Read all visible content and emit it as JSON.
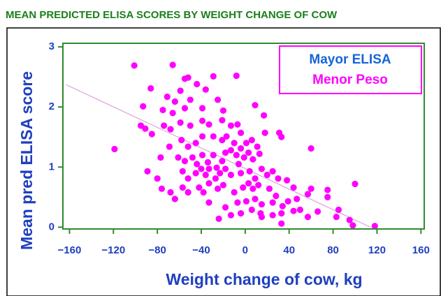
{
  "chart_data": {
    "type": "scatter",
    "title": "MEAN PREDICTED ELISA SCORES BY WEIGHT CHANGE OF COW",
    "xlabel": "Weight change of cow, kg",
    "ylabel": "Mean pred ELISA score",
    "annotations": [
      {
        "text": "Mayor ELISA",
        "color": "#1565d8"
      },
      {
        "text": "Menor Peso",
        "color": "#ff00ff"
      }
    ],
    "xlim": [
      -166,
      163
    ],
    "ylim": [
      -0.03,
      3.06
    ],
    "xticks": [
      {
        "value": -160,
        "label": "−160"
      },
      {
        "value": -120,
        "label": "−120"
      },
      {
        "value": -80,
        "label": "−80"
      },
      {
        "value": -40,
        "label": "−40"
      },
      0,
      40,
      80,
      120,
      160
    ],
    "yticks": [
      0,
      1,
      2,
      3
    ],
    "trendline": {
      "color": "#e0a0e0",
      "x": [
        -163,
        114
      ],
      "y": [
        2.37,
        0
      ]
    },
    "series": [
      {
        "color": "#ff00ff",
        "x": [
          -101,
          -66,
          -8,
          -29,
          -55,
          -52,
          -119,
          -86,
          -44,
          -36,
          -71,
          -59,
          -64,
          -50,
          -93,
          -75,
          -66,
          -55,
          -39,
          -25,
          -20,
          -95,
          -91,
          -85,
          -74,
          -68,
          -59,
          -50,
          -39,
          -33,
          -21,
          -13,
          -7,
          9,
          18,
          31,
          33,
          17,
          -69,
          -58,
          -52,
          -45,
          -39,
          -29,
          -21,
          -17,
          -10,
          -4,
          1,
          6,
          11,
          -77,
          -61,
          -55,
          -48,
          -44,
          -39,
          -34,
          -29,
          -26,
          -21,
          -18,
          -13,
          -8,
          -4,
          -1,
          3,
          7,
          13,
          -6,
          -89,
          -80,
          -57,
          -52,
          -45,
          -40,
          -36,
          -33,
          -27,
          -23,
          -18,
          -13,
          -4,
          4,
          9,
          15,
          20,
          25,
          30,
          38,
          44,
          -57,
          -52,
          -42,
          -38,
          -33,
          -25,
          -20,
          -10,
          -2,
          3,
          7,
          12,
          22,
          28,
          -76,
          -64,
          -68,
          -7,
          1,
          9,
          15,
          25,
          34,
          39,
          47,
          57,
          60,
          75,
          75,
          100,
          60,
          50,
          57,
          66,
          85,
          83,
          95,
          98,
          118,
          33,
          25,
          14,
          6,
          -4,
          -13,
          -24,
          -18,
          -33,
          44,
          15,
          33
        ],
        "y": [
          2.69,
          2.7,
          2.52,
          2.51,
          2.47,
          2.49,
          1.3,
          2.31,
          2.38,
          2.29,
          2.17,
          2.27,
          2.09,
          2.12,
          2.01,
          1.95,
          1.9,
          1.98,
          1.98,
          2.12,
          1.94,
          1.69,
          1.64,
          1.55,
          1.69,
          1.63,
          1.74,
          1.69,
          1.77,
          1.71,
          1.78,
          1.69,
          1.71,
          2.03,
          1.57,
          1.57,
          1.5,
          1.86,
          1.34,
          1.45,
          1.34,
          1.4,
          1.51,
          1.51,
          1.45,
          1.51,
          1.4,
          1.57,
          1.4,
          1.45,
          1.34,
          1.16,
          1.16,
          1.1,
          1.16,
          1.05,
          1.2,
          1.08,
          1.2,
          0.99,
          1.1,
          1.24,
          1.28,
          1.2,
          1.31,
          1.16,
          1.24,
          1.13,
          1.22,
          1.05,
          0.93,
          0.81,
          0.93,
          0.81,
          0.9,
          0.97,
          0.87,
          0.97,
          0.81,
          0.9,
          0.97,
          0.87,
          0.9,
          0.93,
          0.81,
          0.97,
          0.87,
          0.93,
          0.81,
          0.78,
          0.66,
          0.66,
          0.58,
          0.66,
          0.58,
          0.73,
          0.64,
          0.7,
          0.58,
          0.66,
          0.73,
          0.64,
          0.7,
          0.64,
          0.52,
          0.64,
          0.47,
          0.58,
          0.41,
          0.43,
          0.47,
          0.38,
          0.41,
          0.35,
          0.43,
          0.47,
          0.55,
          0.64,
          0.62,
          0.5,
          0.72,
          1.31,
          0.29,
          0.17,
          0.26,
          0.29,
          0.17,
          0.12,
          0.03,
          0.02,
          0.06,
          0.2,
          0.23,
          0.29,
          0.23,
          0.2,
          0.14,
          0.33,
          0.41,
          0.27,
          0.17,
          0.23
        ]
      }
    ]
  }
}
